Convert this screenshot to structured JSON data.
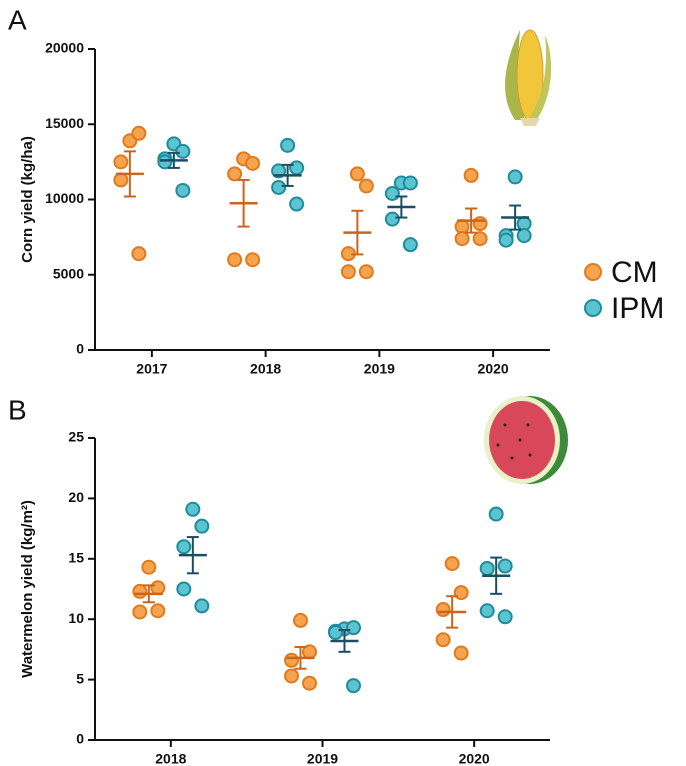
{
  "chart_data": [
    {
      "type": "dotplot",
      "panel": "A",
      "ylabel": "Corn yield (kg/ha)",
      "categories": [
        "2017",
        "2018",
        "2019",
        "2020"
      ],
      "ylim": [
        0,
        20000
      ],
      "yticks": [
        0,
        5000,
        10000,
        15000,
        20000
      ],
      "series": [
        {
          "name": "CM",
          "color": "#f6a34f",
          "edgecolor": "#e27a1d",
          "line_color": "#c9651c",
          "points": [
            [
              13900,
              14400,
              12500,
              11300,
              6400
            ],
            [
              12700,
              12400,
              11700,
              6000,
              6000
            ],
            [
              11700,
              10900,
              6400,
              5200,
              5200
            ],
            [
              11600,
              8400,
              8200,
              7400,
              7400
            ]
          ],
          "means": [
            11700,
            9750,
            7800,
            8600
          ],
          "errors": [
            1500,
            1550,
            1450,
            800
          ]
        },
        {
          "name": "IPM",
          "color": "#5cc3d0",
          "edgecolor": "#1f8c9d",
          "line_color": "#1b4d63",
          "points": [
            [
              13700,
              13200,
              12700,
              12500,
              10600
            ],
            [
              13600,
              12100,
              11900,
              10800,
              9700
            ],
            [
              11100,
              11100,
              10400,
              8700,
              7000
            ],
            [
              11500,
              8400,
              7600,
              7300,
              7600
            ]
          ],
          "means": [
            12600,
            11600,
            9500,
            8800
          ],
          "errors": [
            500,
            700,
            700,
            800
          ]
        }
      ]
    },
    {
      "type": "dotplot",
      "panel": "B",
      "ylabel": "Watermelon yield (kg/m²)",
      "categories": [
        "2018",
        "2019",
        "2020"
      ],
      "ylim": [
        0,
        25
      ],
      "yticks": [
        0,
        5,
        10,
        15,
        20,
        25
      ],
      "series": [
        {
          "color": "#f6a34f",
          "edgecolor": "#e27a1d",
          "line_color": "#c9651c",
          "points": [
            [
              14.3,
              12.6,
              12.3,
              10.6,
              10.7
            ],
            [
              9.9,
              7.3,
              6.6,
              5.3,
              4.7
            ],
            [
              14.6,
              12.2,
              10.8,
              8.3,
              7.2
            ]
          ],
          "means": [
            12.1,
            6.8,
            10.6
          ],
          "errors": [
            0.7,
            0.9,
            1.3
          ]
        },
        {
          "color": "#5cc3d0",
          "edgecolor": "#1f8c9d",
          "line_color": "#1b4d63",
          "points": [
            [
              19.1,
              17.7,
              16.0,
              12.5,
              11.1
            ],
            [
              9.2,
              9.3,
              9.0,
              8.9,
              4.5
            ],
            [
              18.7,
              14.4,
              14.2,
              10.7,
              10.2
            ]
          ],
          "means": [
            15.3,
            8.2,
            13.6
          ],
          "errors": [
            1.5,
            0.9,
            1.5
          ]
        }
      ]
    }
  ]
}
